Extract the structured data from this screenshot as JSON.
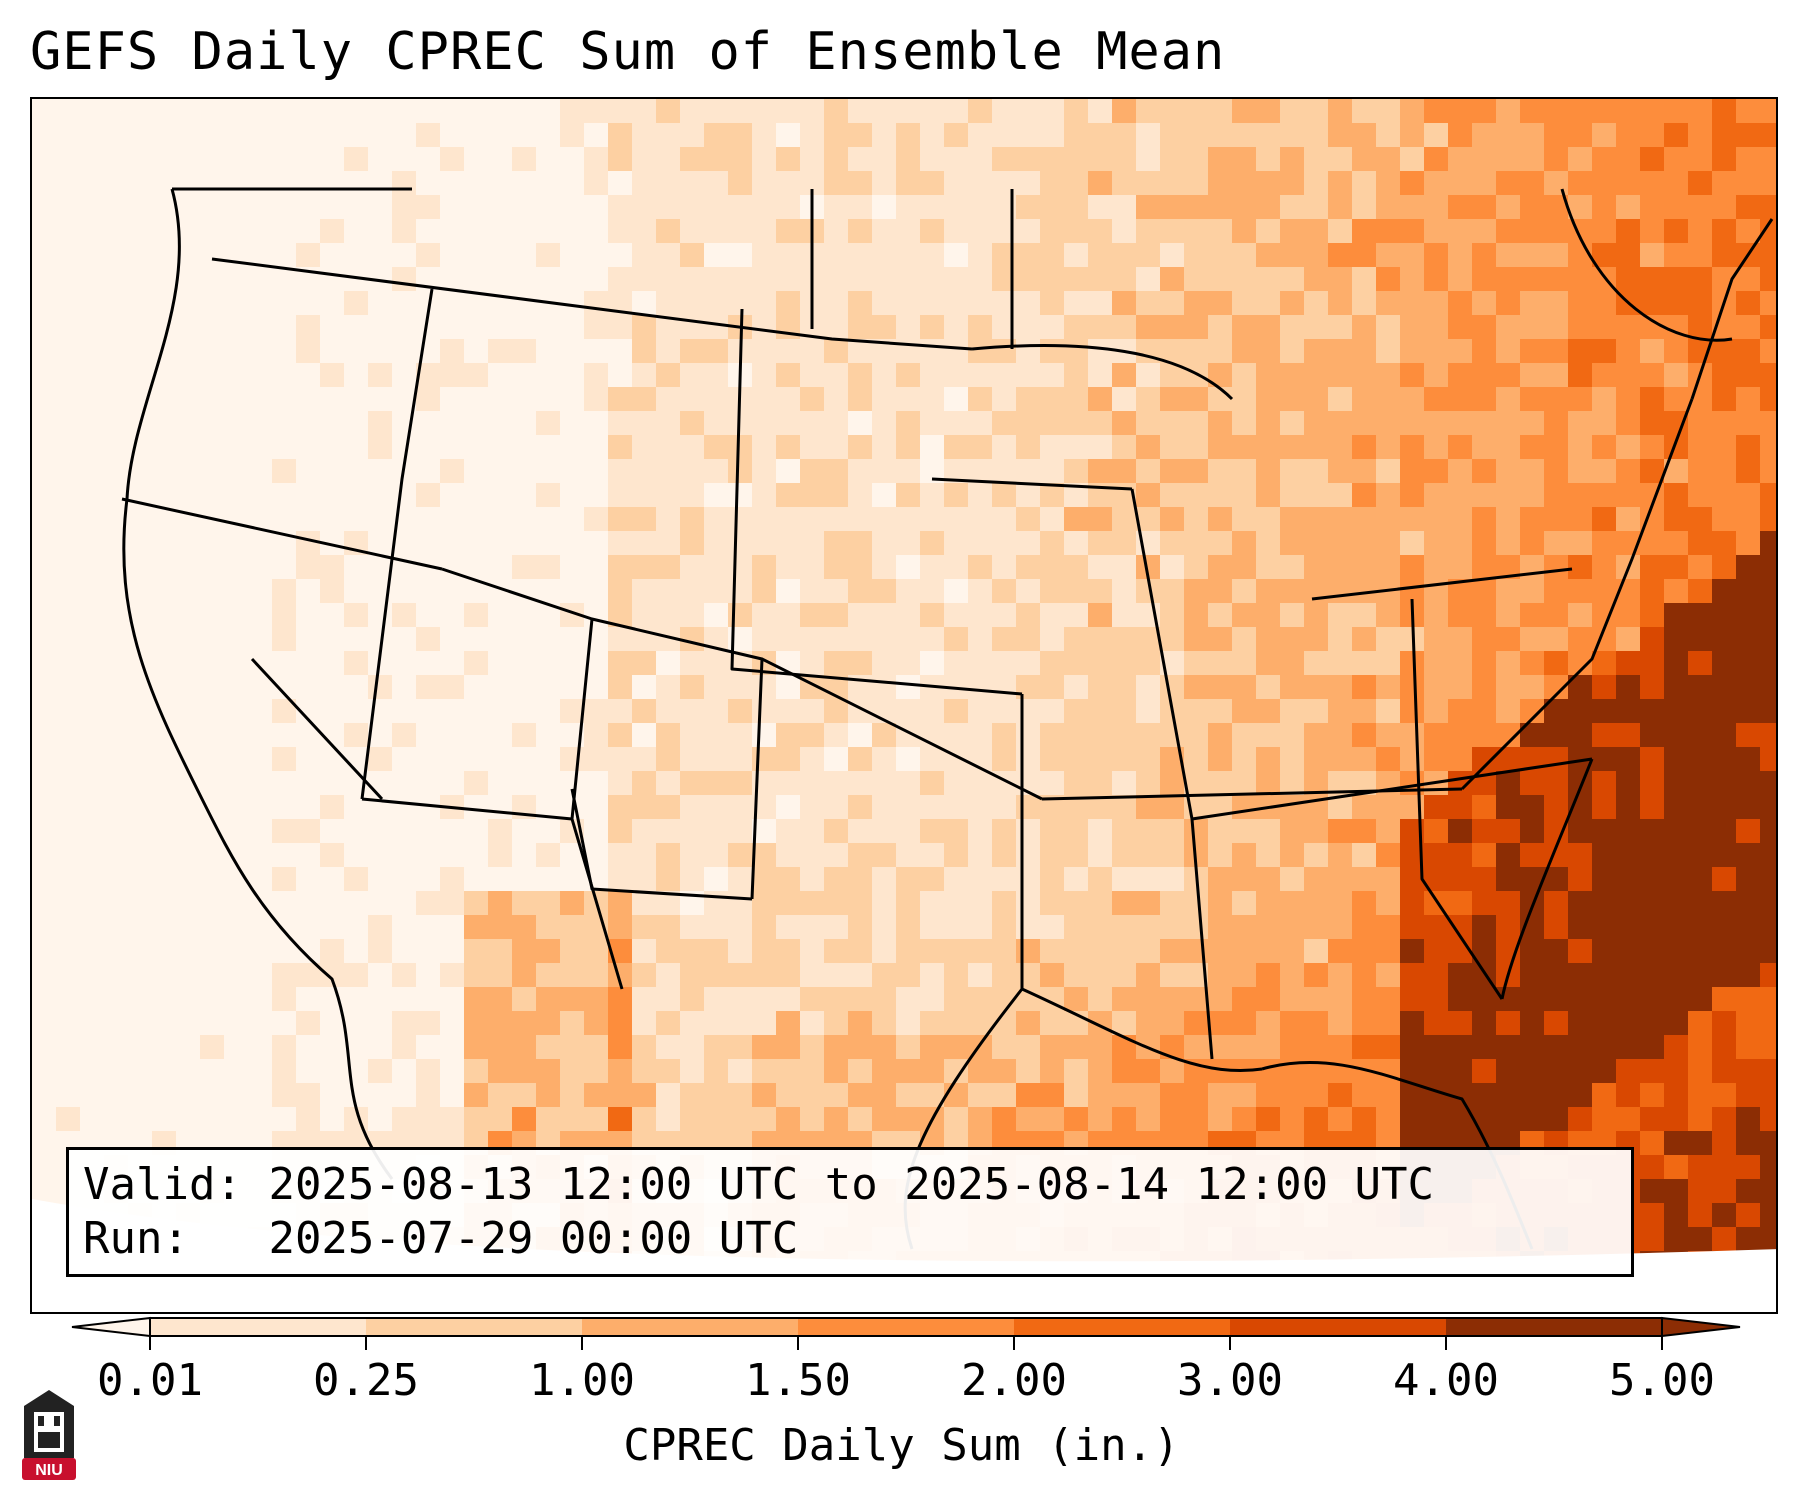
{
  "title": "GEFS Daily CPREC Sum of Ensemble Mean",
  "info": {
    "valid_label": "Valid:",
    "valid_text": "2025-08-13 12:00 UTC to 2025-08-14 12:00 UTC",
    "run_label": "Run:",
    "run_text": "2025-07-29 00:00 UTC"
  },
  "colorbar": {
    "label": "CPREC Daily Sum (in.)",
    "ticks": [
      "0.01",
      "0.25",
      "1.00",
      "1.50",
      "2.00",
      "3.00",
      "4.00",
      "5.00"
    ],
    "colors": [
      "#fff5eb",
      "#fee6ce",
      "#fdd0a2",
      "#fdae6b",
      "#fd8d3c",
      "#f16913",
      "#d94801",
      "#8c2d04"
    ],
    "extend": "both"
  },
  "logo": {
    "text": "NIU",
    "icon": "niu-tower-icon",
    "color": "#c8102e"
  },
  "colors": {
    "coast": "#000000",
    "background": "#ffffff"
  }
}
